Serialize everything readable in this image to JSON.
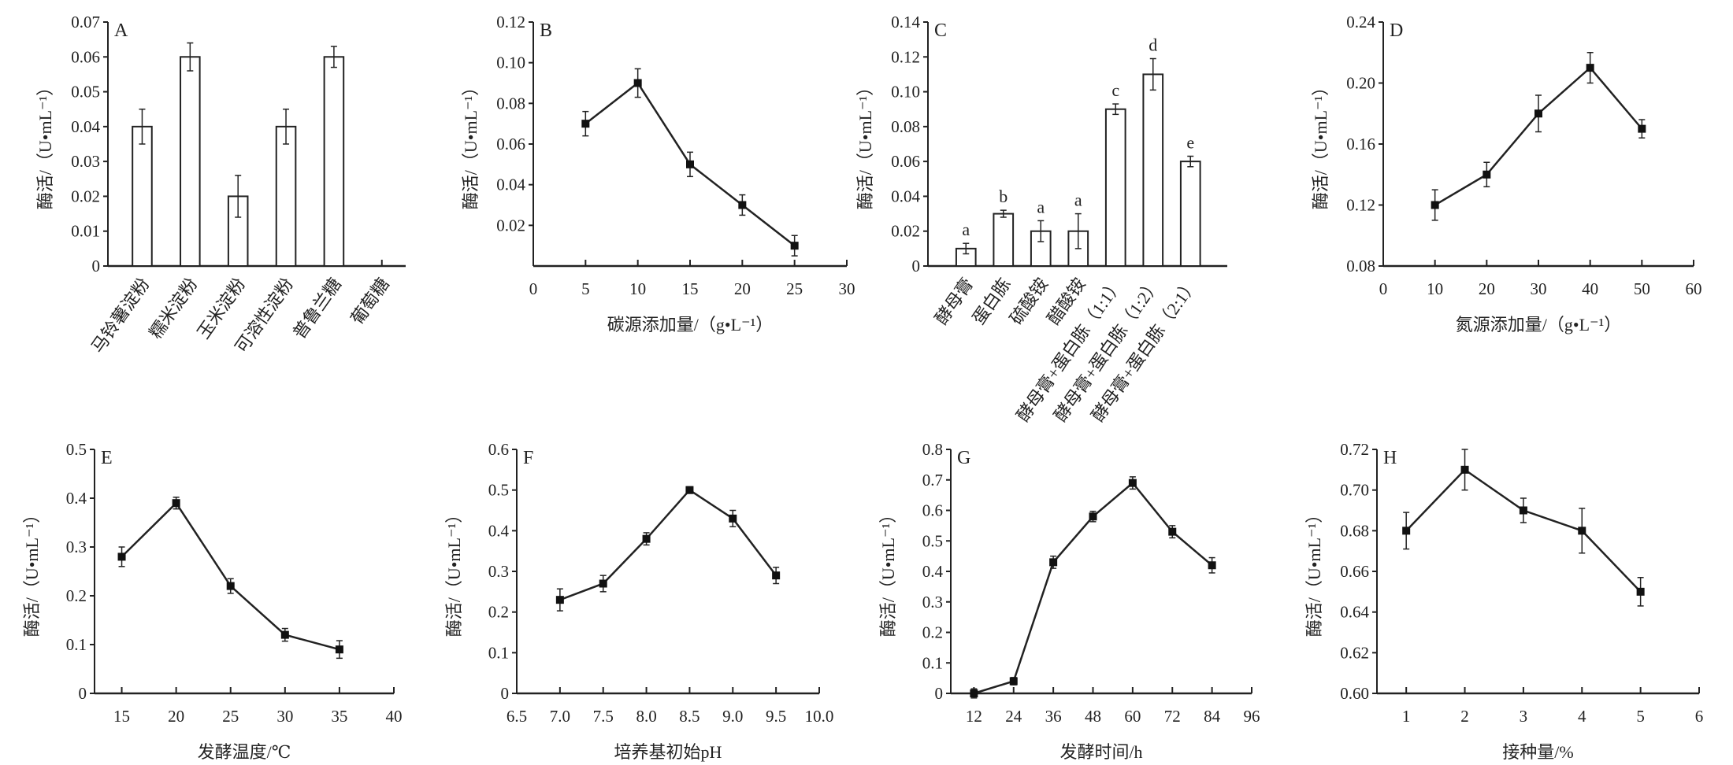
{
  "chart_data": [
    {
      "id": "A",
      "type": "bar",
      "letter": "A",
      "ylabel": "酶活/（U•mL⁻¹）",
      "xlabel": "",
      "categories": [
        "马铃薯淀粉",
        "糯米淀粉",
        "玉米淀粉",
        "可溶性淀粉",
        "普鲁兰糖",
        "葡萄糖"
      ],
      "values": [
        0.04,
        0.06,
        0.02,
        0.04,
        0.06,
        0
      ],
      "errors": [
        0.005,
        0.004,
        0.006,
        0.005,
        0.003,
        0
      ],
      "ylim": [
        0,
        0.07
      ],
      "yticks": [
        0,
        0.01,
        0.02,
        0.03,
        0.04,
        0.05,
        0.06,
        0.07
      ],
      "ytick_labels": [
        "0",
        "0.01",
        "0.02",
        "0.03",
        "0.04",
        "0.05",
        "0.06",
        "0.07"
      ]
    },
    {
      "id": "B",
      "type": "line",
      "letter": "B",
      "ylabel": "酶活/（U•mL⁻¹）",
      "xlabel": "碳源添加量/（g•L⁻¹）",
      "x": [
        5,
        10,
        15,
        20,
        25
      ],
      "y": [
        0.07,
        0.09,
        0.05,
        0.03,
        0.01
      ],
      "errors": [
        0.006,
        0.007,
        0.006,
        0.005,
        0.005
      ],
      "xlim": [
        0,
        30
      ],
      "xticks": [
        0,
        5,
        10,
        15,
        20,
        25,
        30
      ],
      "xtick_labels": [
        "0",
        "5",
        "10",
        "15",
        "20",
        "25",
        "30"
      ],
      "ylim": [
        0,
        0.12
      ],
      "yticks": [
        0.02,
        0.04,
        0.06,
        0.08,
        0.1,
        0.12
      ],
      "ytick_labels": [
        "0.02",
        "0.04",
        "0.06",
        "0.08",
        "0.10",
        "0.12"
      ]
    },
    {
      "id": "C",
      "type": "bar",
      "letter": "C",
      "ylabel": "酶活/（U•mL⁻¹）",
      "xlabel": "",
      "categories": [
        "酵母膏",
        "蛋白胨",
        "硫酸铵",
        "醋酸铵",
        "酵母膏+蛋白胨（1:1）",
        "酵母膏+蛋白胨（1:2）",
        "酵母膏+蛋白胨（2:1）"
      ],
      "values": [
        0.01,
        0.03,
        0.02,
        0.02,
        0.09,
        0.11,
        0.06
      ],
      "errors": [
        0.003,
        0.002,
        0.006,
        0.01,
        0.003,
        0.009,
        0.003
      ],
      "significance": [
        "a",
        "b",
        "a",
        "a",
        "c",
        "d",
        "e"
      ],
      "ylim": [
        0,
        0.14
      ],
      "yticks": [
        0,
        0.02,
        0.04,
        0.06,
        0.08,
        0.1,
        0.12,
        0.14
      ],
      "ytick_labels": [
        "0",
        "0.02",
        "0.04",
        "0.06",
        "0.08",
        "0.10",
        "0.12",
        "0.14"
      ]
    },
    {
      "id": "D",
      "type": "line",
      "letter": "D",
      "ylabel": "酶活/（U•mL⁻¹）",
      "xlabel": "氮源添加量/（g•L⁻¹）",
      "x": [
        10,
        20,
        30,
        40,
        50
      ],
      "y": [
        0.12,
        0.14,
        0.18,
        0.21,
        0.17
      ],
      "errors": [
        0.01,
        0.008,
        0.012,
        0.01,
        0.006
      ],
      "xlim": [
        0,
        60
      ],
      "xticks": [
        0,
        10,
        20,
        30,
        40,
        50,
        60
      ],
      "xtick_labels": [
        "0",
        "10",
        "20",
        "30",
        "40",
        "50",
        "60"
      ],
      "ylim": [
        0.08,
        0.24
      ],
      "yticks": [
        0.08,
        0.12,
        0.16,
        0.2,
        0.24
      ],
      "ytick_labels": [
        "0.08",
        "0.12",
        "0.16",
        "0.20",
        "0.24"
      ]
    },
    {
      "id": "E",
      "type": "line",
      "letter": "E",
      "ylabel": "酶活/（U•mL⁻¹）",
      "xlabel": "发酵温度/℃",
      "x": [
        15,
        20,
        25,
        30,
        35
      ],
      "y": [
        0.28,
        0.39,
        0.22,
        0.12,
        0.09
      ],
      "errors": [
        0.02,
        0.012,
        0.015,
        0.013,
        0.018
      ],
      "xlim": [
        12.5,
        40
      ],
      "xticks": [
        15,
        20,
        25,
        30,
        35,
        40
      ],
      "xtick_labels": [
        "15",
        "20",
        "25",
        "30",
        "35",
        "40"
      ],
      "ylim": [
        0,
        0.5
      ],
      "yticks": [
        0,
        0.1,
        0.2,
        0.3,
        0.4,
        0.5
      ],
      "ytick_labels": [
        "0",
        "0.1",
        "0.2",
        "0.3",
        "0.4",
        "0.5"
      ]
    },
    {
      "id": "F",
      "type": "line",
      "letter": "F",
      "ylabel": "酶活/（U•mL⁻¹）",
      "xlabel": "培养基初始pH",
      "x": [
        7.0,
        7.5,
        8.0,
        8.5,
        9.0,
        9.5
      ],
      "y": [
        0.23,
        0.27,
        0.38,
        0.5,
        0.43,
        0.29
      ],
      "errors": [
        0.027,
        0.02,
        0.015,
        0.008,
        0.02,
        0.02
      ],
      "xlim": [
        6.5,
        10.0
      ],
      "xticks": [
        6.5,
        7.0,
        7.5,
        8.0,
        8.5,
        9.0,
        9.5,
        10.0
      ],
      "xtick_labels": [
        "6.5",
        "7.0",
        "7.5",
        "8.0",
        "8.5",
        "9.0",
        "9.5",
        "10.0"
      ],
      "ylim": [
        0,
        0.6
      ],
      "yticks": [
        0,
        0.1,
        0.2,
        0.3,
        0.4,
        0.5,
        0.6
      ],
      "ytick_labels": [
        "0",
        "0.1",
        "0.2",
        "0.3",
        "0.4",
        "0.5",
        "0.6"
      ]
    },
    {
      "id": "G",
      "type": "line",
      "letter": "G",
      "ylabel": "酶活/（U•mL⁻¹）",
      "xlabel": "发酵时间/h",
      "x": [
        12,
        24,
        36,
        48,
        60,
        72,
        84
      ],
      "y": [
        0,
        0.04,
        0.43,
        0.58,
        0.69,
        0.53,
        0.42
      ],
      "errors": [
        0.015,
        0.012,
        0.02,
        0.017,
        0.02,
        0.02,
        0.025
      ],
      "xlim": [
        5,
        96
      ],
      "xticks": [
        12,
        24,
        36,
        48,
        60,
        72,
        84,
        96
      ],
      "xtick_labels": [
        "12",
        "24",
        "36",
        "48",
        "60",
        "72",
        "84",
        "96"
      ],
      "ylim": [
        0,
        0.8
      ],
      "yticks": [
        0,
        0.1,
        0.2,
        0.3,
        0.4,
        0.5,
        0.6,
        0.7,
        0.8
      ],
      "ytick_labels": [
        "0",
        "0.1",
        "0.2",
        "0.3",
        "0.4",
        "0.5",
        "0.6",
        "0.7",
        "0.8"
      ]
    },
    {
      "id": "H",
      "type": "line",
      "letter": "H",
      "ylabel": "酶活/（U•mL⁻¹）",
      "xlabel": "接种量/%",
      "x": [
        1,
        2,
        3,
        4,
        5
      ],
      "y": [
        0.68,
        0.71,
        0.69,
        0.68,
        0.65
      ],
      "errors": [
        0.009,
        0.01,
        0.006,
        0.011,
        0.007
      ],
      "xlim": [
        0.5,
        6
      ],
      "xticks": [
        1,
        2,
        3,
        4,
        5,
        6
      ],
      "xtick_labels": [
        "1",
        "2",
        "3",
        "4",
        "5",
        "6"
      ],
      "ylim": [
        0.6,
        0.72
      ],
      "yticks": [
        0.6,
        0.62,
        0.64,
        0.66,
        0.68,
        0.7,
        0.72
      ],
      "ytick_labels": [
        "0.60",
        "0.62",
        "0.64",
        "0.66",
        "0.68",
        "0.70",
        "0.72"
      ]
    }
  ]
}
